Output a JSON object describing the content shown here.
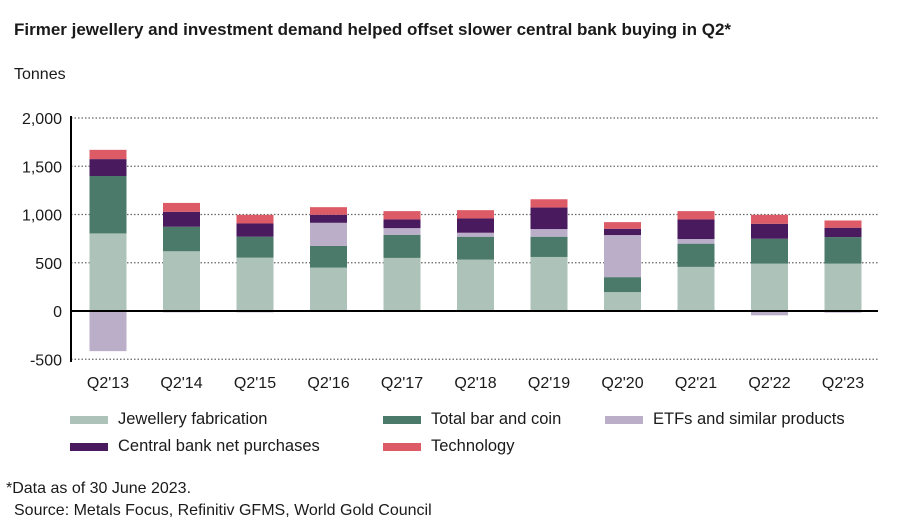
{
  "chart_data": {
    "type": "bar",
    "stacked": true,
    "title": "Firmer jewellery and investment demand helped offset slower central bank buying in Q2*",
    "ylabel": "Tonnes",
    "xlabel": "",
    "ylim": [
      -500,
      2000
    ],
    "yticks": [
      -500,
      0,
      500,
      1000,
      1500,
      2000
    ],
    "ytick_labels": [
      "-500",
      "0",
      "500",
      "1,000",
      "1,500",
      "2,000"
    ],
    "grid": "horizontal dotted",
    "legend_position": "bottom",
    "categories": [
      "Q2'13",
      "Q2'14",
      "Q2'15",
      "Q2'16",
      "Q2'17",
      "Q2'18",
      "Q2'19",
      "Q2'20",
      "Q2'21",
      "Q2'22",
      "Q2'23"
    ],
    "series": [
      {
        "name": "Jewellery fabrication",
        "color": "#adc2b9",
        "values": [
          804,
          619,
          553,
          450,
          550,
          533,
          560,
          196,
          457,
          491,
          491
        ]
      },
      {
        "name": "Total bar and coin",
        "color": "#4b7a6b",
        "values": [
          595,
          254,
          217,
          224,
          240,
          237,
          210,
          155,
          241,
          258,
          275
        ]
      },
      {
        "name": "ETFs and similar products",
        "color": "#bbaec9",
        "values": [
          -416,
          -14,
          -14,
          240,
          69,
          41,
          79,
          436,
          48,
          -45,
          -17
        ]
      },
      {
        "name": "Central bank net purchases",
        "color": "#4a1a5e",
        "values": [
          175,
          155,
          137,
          83,
          90,
          148,
          223,
          65,
          203,
          155,
          97
        ]
      },
      {
        "name": "Technology",
        "color": "#dc5b67",
        "values": [
          96,
          92,
          90,
          79,
          86,
          86,
          86,
          69,
          86,
          93,
          75
        ]
      }
    ]
  },
  "footnotes": {
    "note": "*Data as of 30 June 2023.",
    "source": "Source: Metals Focus, Refinitiv GFMS, World Gold Council"
  }
}
